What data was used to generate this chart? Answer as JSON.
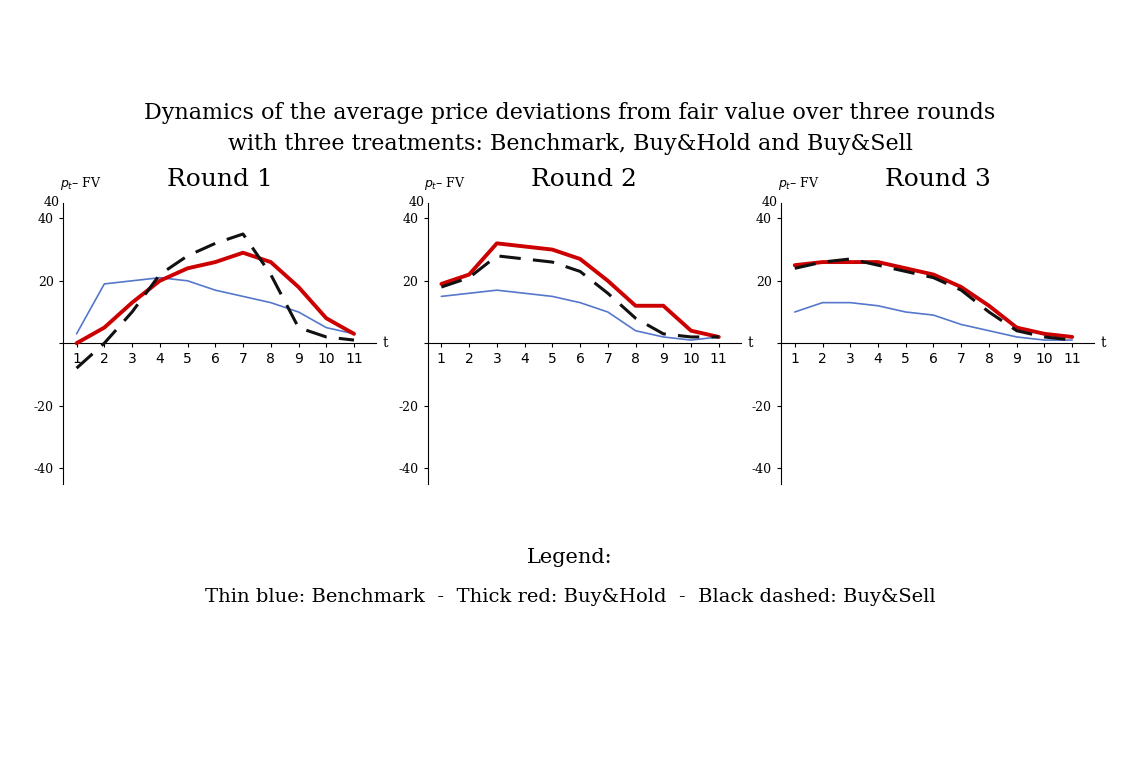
{
  "title_line1": "Dynamics of the average price deviations from fair value over three rounds",
  "title_line2": "with three treatments: Benchmark, Buy&Hold and Buy&Sell",
  "title_fontsize": 16,
  "round_titles": [
    "Round 1",
    "Round 2",
    "Round 3"
  ],
  "x": [
    1,
    2,
    3,
    4,
    5,
    6,
    7,
    8,
    9,
    10,
    11
  ],
  "round1": {
    "benchmark": [
      3,
      19,
      20,
      21,
      20,
      17,
      15,
      13,
      10,
      5,
      3
    ],
    "buyhold": [
      0,
      5,
      13,
      20,
      24,
      26,
      29,
      26,
      18,
      8,
      3
    ],
    "buysell": [
      -8,
      0,
      10,
      22,
      28,
      32,
      35,
      22,
      5,
      2,
      1
    ]
  },
  "round2": {
    "benchmark": [
      15,
      16,
      17,
      16,
      15,
      13,
      10,
      4,
      2,
      1,
      2
    ],
    "buyhold": [
      19,
      22,
      32,
      31,
      30,
      27,
      20,
      12,
      12,
      4,
      2
    ],
    "buysell": [
      18,
      21,
      28,
      27,
      26,
      23,
      16,
      8,
      3,
      2,
      2
    ]
  },
  "round3": {
    "benchmark": [
      10,
      13,
      13,
      12,
      10,
      9,
      6,
      4,
      2,
      1,
      1
    ],
    "buyhold": [
      25,
      26,
      26,
      26,
      24,
      22,
      18,
      12,
      5,
      3,
      2
    ],
    "buysell": [
      24,
      26,
      27,
      25,
      23,
      21,
      17,
      10,
      4,
      2,
      1
    ]
  },
  "ylim": [
    -45,
    45
  ],
  "yticks": [
    -40,
    -20,
    0,
    20,
    40
  ],
  "ytick_labels": [
    "-40",
    "-20",
    "",
    "20",
    "40"
  ],
  "legend_text": "Legend:",
  "legend_line1": "Thin blue: Benchmark  -  Thick red: Buy&Hold  -  Black dashed: Buy&Sell",
  "benchmark_color": "#5577cc",
  "buyhold_color": "#cc0000",
  "buysell_color": "#111111",
  "background_color": "#ffffff"
}
